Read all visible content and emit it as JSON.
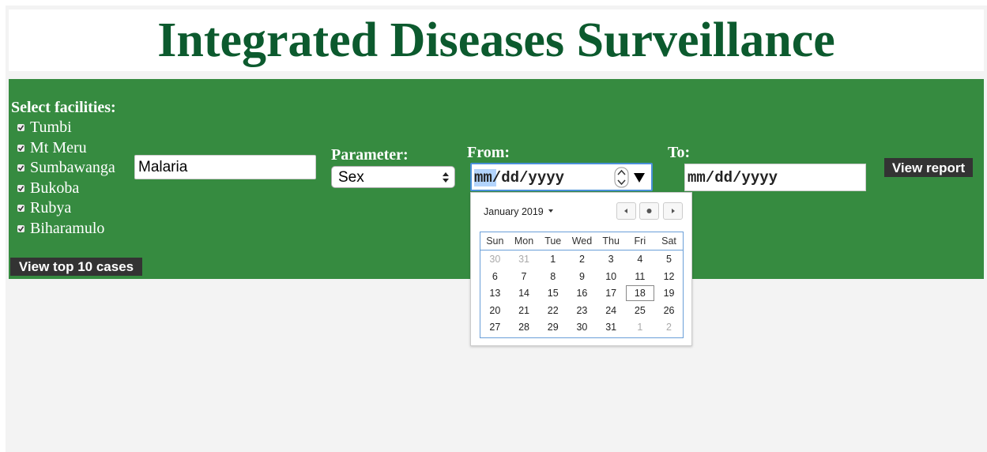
{
  "header": {
    "title": "Integrated Diseases Surveillance"
  },
  "form": {
    "facilities_label": "Select facilities:",
    "facilities": [
      {
        "name": "Tumbi",
        "checked": true
      },
      {
        "name": "Mt Meru",
        "checked": true
      },
      {
        "name": "Sumbawanga",
        "checked": true
      },
      {
        "name": "Bukoba",
        "checked": true
      },
      {
        "name": "Rubya",
        "checked": true
      },
      {
        "name": "Biharamulo",
        "checked": true
      }
    ],
    "disease": "Malaria",
    "parameter_label": "Parameter:",
    "parameter": "Sex",
    "from_label": "From:",
    "to_label": "To:",
    "date_placeholder": "mm/dd/yyyy",
    "view_report": "View report",
    "view_top": "View top 10 cases"
  },
  "calendar": {
    "month": "January 2019",
    "weekdays": [
      "Sun",
      "Mon",
      "Tue",
      "Wed",
      "Thu",
      "Fri",
      "Sat"
    ],
    "weeks": [
      [
        30,
        31,
        1,
        2,
        3,
        4,
        5
      ],
      [
        6,
        7,
        8,
        9,
        10,
        11,
        12
      ],
      [
        13,
        14,
        15,
        16,
        17,
        18,
        19
      ],
      [
        20,
        21,
        22,
        23,
        24,
        25,
        26
      ],
      [
        27,
        28,
        29,
        30,
        31,
        1,
        2
      ]
    ],
    "highlighted_day": 18
  }
}
